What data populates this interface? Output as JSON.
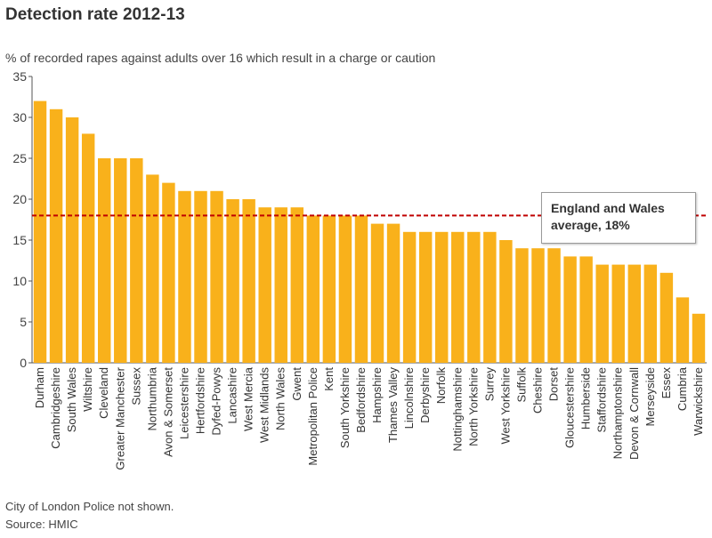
{
  "title": "Detection rate 2012-13",
  "subtitle": "% of recorded rapes against adults over 16 which result in a charge or caution",
  "footnote": "City of London Police not shown.",
  "source": "Source: HMIC",
  "annotation": {
    "line1": "England and Wales",
    "line2": "average, 18%"
  },
  "colors": {
    "bar": "#f9b11b",
    "average_line": "#c00000",
    "axis": "#555555"
  },
  "chart_data": {
    "type": "bar",
    "title": "Detection rate 2012-13",
    "ylabel": "% of recorded rapes against adults over 16 which result in a charge or caution",
    "xlabel": "",
    "ylim": [
      0,
      35
    ],
    "yticks": [
      0,
      5,
      10,
      15,
      20,
      25,
      30,
      35
    ],
    "average": 18,
    "categories": [
      "Durham",
      "Cambridgeshire",
      "South Wales",
      "Wiltshire",
      "Cleveland",
      "Greater Manchester",
      "Sussex",
      "Northumbria",
      "Avon & Somerset",
      "Leicestershire",
      "Hertfordshire",
      "Dyfed-Powys",
      "Lancashire",
      "West Mercia",
      "West Midlands",
      "North Wales",
      "Gwent",
      "Metropolitan Police",
      "Kent",
      "South Yorkshire",
      "Bedfordshire",
      "Hampshire",
      "Thames Valley",
      "Lincolnshire",
      "Derbyshire",
      "Norfolk",
      "Nottinghamshire",
      "North Yorkshire",
      "Surrey",
      "West Yorkshire",
      "Suffolk",
      "Cheshire",
      "Dorset",
      "Gloucestershire",
      "Humberside",
      "Staffordshire",
      "Northamptonshire",
      "Devon & Cornwall",
      "Merseyside",
      "Essex",
      "Cumbria",
      "Warwickshire"
    ],
    "values": [
      32,
      31,
      30,
      28,
      25,
      25,
      25,
      23,
      22,
      21,
      21,
      21,
      20,
      20,
      19,
      19,
      19,
      18,
      18,
      18,
      18,
      17,
      17,
      16,
      16,
      16,
      16,
      16,
      16,
      15,
      14,
      14,
      14,
      13,
      13,
      12,
      12,
      12,
      12,
      11,
      8,
      6
    ]
  }
}
